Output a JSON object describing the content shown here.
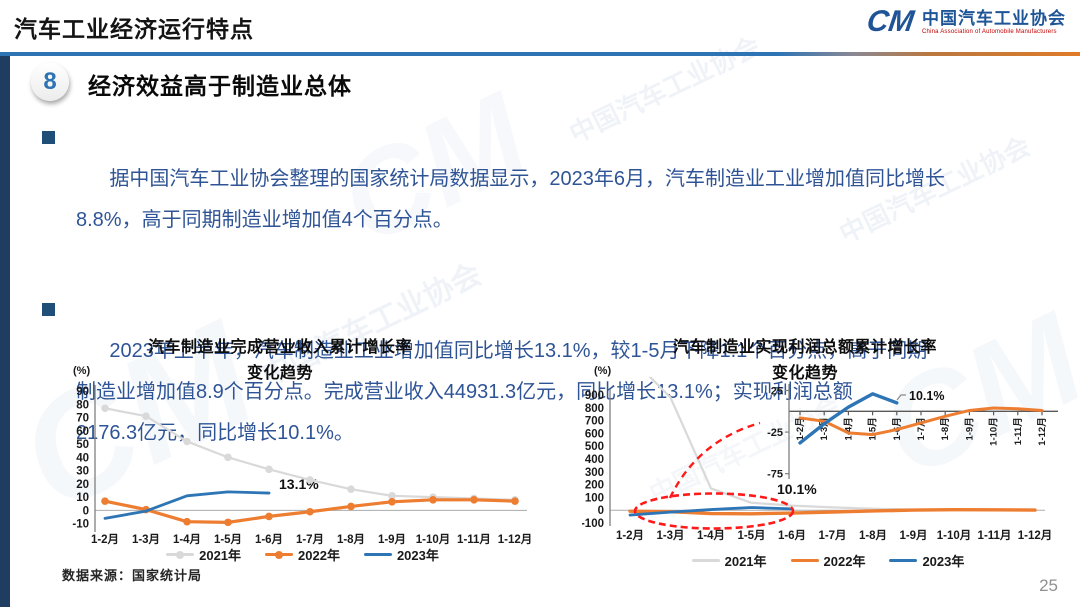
{
  "header": {
    "title": "汽车工业经济运行特点",
    "logo": {
      "mark": "CM",
      "name_cn": "中国汽车工业协会",
      "name_en": "China Association of Automobile Manufacturers"
    }
  },
  "section": {
    "number": "8",
    "heading": "经济效益高于制造业总体"
  },
  "bullets": [
    "据中国汽车工业协会整理的国家统计局数据显示，2023年6月，汽车制造业工业增加值同比增长\n8.8%，高于同期制造业增加值4个百分点。",
    "2023年上半年，汽车制造业工业增加值同比增长13.1%，较1-5月下降1.1个百分点，高于同期\n制造业增加值8.9个百分点。完成营业收入44931.3亿元，同比增长13.1%；实现利润总额\n2176.3亿元，同比增长10.1%。"
  ],
  "watermark": "中国汽车工业协会",
  "source_note": "数据来源：国家统计局",
  "page_number": "25",
  "colors": {
    "accent_blue": "#2E74B5",
    "text_blue": "#2F5496",
    "side_bar_navy": "#1F3C61",
    "series_2021_gray": "#D9D9D9",
    "series_2022_orange": "#ED7D31",
    "series_2023_blue": "#2E75B6",
    "annotation_red": "#FF1A1A"
  },
  "chart_data": [
    {
      "type": "line",
      "title": "汽车制造业完成营业收入累计增长率",
      "subtitle": "变化趋势",
      "unit": "(%)",
      "categories": [
        "1-2月",
        "1-3月",
        "1-4月",
        "1-5月",
        "1-6月",
        "1-7月",
        "1-8月",
        "1-9月",
        "1-10月",
        "1-11月",
        "1-12月"
      ],
      "ylim": [
        -14,
        90
      ],
      "yticks": [
        90,
        80,
        70,
        60,
        50,
        40,
        30,
        20,
        10,
        0,
        -10
      ],
      "grid": false,
      "legend_position": "bottom",
      "annotation": {
        "text": "13.1%",
        "at": "1-6月",
        "y": 13.1
      },
      "series": [
        {
          "name": "2021年",
          "color": "#D9D9D9",
          "marker": true,
          "values": [
            77,
            71,
            52,
            40,
            31,
            23,
            16,
            11,
            10,
            9,
            8
          ]
        },
        {
          "name": "2022年",
          "color": "#ED7D31",
          "marker": true,
          "values": [
            7,
            0.6,
            -8.5,
            -9,
            -4.5,
            -1,
            3,
            6.5,
            8,
            8,
            7
          ]
        },
        {
          "name": "2023年",
          "color": "#2E75B6",
          "marker": false,
          "values": [
            -6,
            -0.5,
            11,
            14,
            13.1
          ]
        }
      ]
    },
    {
      "type": "line",
      "title": "汽车制造业实现利润总额累计增长率",
      "subtitle": "变化趋势",
      "unit": "(%)",
      "categories": [
        "1-2月",
        "1-3月",
        "1-4月",
        "1-5月",
        "1-6月",
        "1-7月",
        "1-8月",
        "1-9月",
        "1-10月",
        "1-11月",
        "1-12月"
      ],
      "ylim": [
        -100,
        900
      ],
      "yticks": [
        900,
        800,
        700,
        600,
        500,
        400,
        300,
        200,
        100,
        0,
        -100
      ],
      "grid": false,
      "legend_position": "bottom",
      "annotation": {
        "text": "10.1%",
        "at": "1-6月",
        "y": 10.1
      },
      "callout": "red dashed ellipse around 2023 values near zero, linked to zoom inset",
      "series": [
        {
          "name": "2021年",
          "color": "#D9D9D9",
          "marker": false,
          "values": [
            1200,
            880,
            170,
            58,
            36,
            22,
            12,
            5,
            2,
            1,
            0
          ]
        },
        {
          "name": "2022年",
          "color": "#ED7D31",
          "marker": false,
          "values": [
            -8,
            -12,
            -26,
            -28,
            -22,
            -14,
            -6,
            1,
            4,
            3,
            1
          ]
        },
        {
          "name": "2023年",
          "color": "#2E75B6",
          "marker": false,
          "values": [
            -38,
            -15,
            5,
            21,
            10.1
          ]
        }
      ]
    },
    {
      "type": "line",
      "title": "",
      "subtitle": "",
      "unit": "",
      "categories": [
        "1-2月",
        "1-3月",
        "1-4月",
        "1-5月",
        "1-6月",
        "1-7月",
        "1-8月",
        "1-9月",
        "1-10月",
        "1-11月",
        "1-12月"
      ],
      "ylim": [
        -85,
        28
      ],
      "yticks": [
        25,
        -25,
        -75
      ],
      "grid": false,
      "legend_position": "none",
      "annotation": {
        "text": "10.1%",
        "at": "1-6月",
        "y": 10.1
      },
      "series": [
        {
          "name": "2022年",
          "color": "#ED7D31",
          "marker": false,
          "values": [
            -8,
            -12,
            -26,
            -28,
            -22,
            -14,
            -6,
            1,
            4,
            3,
            1
          ]
        },
        {
          "name": "2023年",
          "color": "#2E75B6",
          "marker": false,
          "values": [
            -38,
            -15,
            5,
            21,
            10.1
          ]
        }
      ]
    }
  ]
}
